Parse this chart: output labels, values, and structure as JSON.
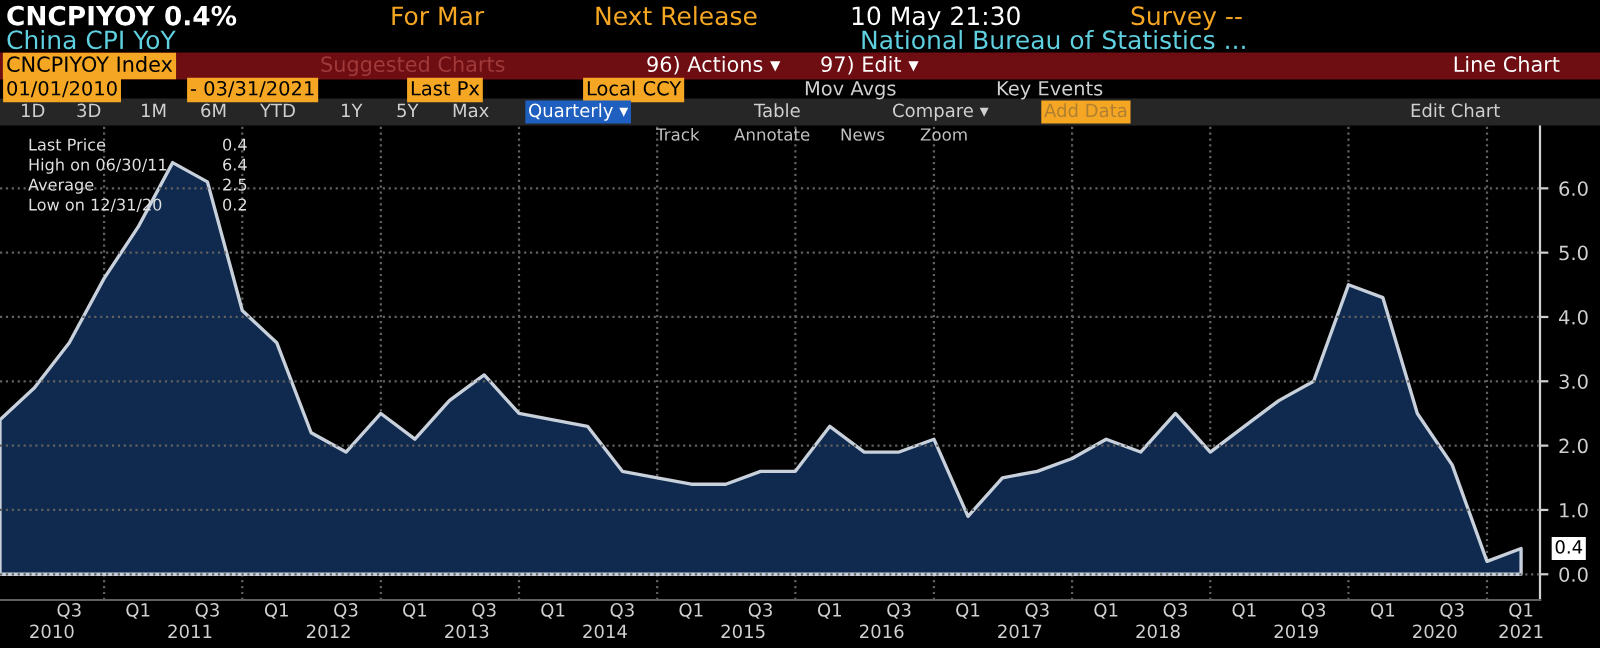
{
  "chart_data": {
    "type": "area",
    "title": "CNCPIYOY 0.4%",
    "subtitle": "China CPI YoY",
    "x": [
      "2010-03-31",
      "2010-06-30",
      "2010-09-30",
      "2010-12-31",
      "2011-03-31",
      "2011-06-30",
      "2011-09-30",
      "2011-12-31",
      "2012-03-31",
      "2012-06-30",
      "2012-09-30",
      "2012-12-31",
      "2013-03-31",
      "2013-06-30",
      "2013-09-30",
      "2013-12-31",
      "2014-03-31",
      "2014-06-30",
      "2014-09-30",
      "2014-12-31",
      "2015-03-31",
      "2015-06-30",
      "2015-09-30",
      "2015-12-31",
      "2016-03-31",
      "2016-06-30",
      "2016-09-30",
      "2016-12-31",
      "2017-03-31",
      "2017-06-30",
      "2017-09-30",
      "2017-12-31",
      "2018-03-31",
      "2018-06-30",
      "2018-09-30",
      "2018-12-31",
      "2019-03-31",
      "2019-06-30",
      "2019-09-30",
      "2019-12-31",
      "2020-03-31",
      "2020-06-30",
      "2020-09-30",
      "2020-12-31",
      "2021-03-31"
    ],
    "series": [
      {
        "color": "#0f2a4e",
        "values": [
          2.4,
          2.9,
          3.6,
          4.6,
          5.4,
          6.4,
          6.1,
          4.1,
          3.6,
          2.2,
          1.9,
          2.5,
          2.1,
          2.7,
          3.1,
          2.5,
          2.4,
          2.3,
          1.6,
          1.5,
          1.4,
          1.4,
          1.6,
          1.6,
          2.3,
          1.9,
          1.9,
          2.1,
          0.9,
          1.5,
          1.6,
          1.8,
          2.1,
          1.9,
          2.5,
          1.9,
          2.3,
          2.7,
          3.0,
          4.5,
          4.3,
          2.5,
          1.7,
          0.2,
          0.4
        ]
      }
    ],
    "xlim": [
      "2010-03-31",
      "2021-05-20"
    ],
    "xticks": [
      {
        "value": "2010-09-30",
        "label": "Q3"
      },
      {
        "value": "2011-03-31",
        "label": "Q1"
      },
      {
        "value": "2011-09-30",
        "label": "Q3"
      },
      {
        "value": "2012-03-31",
        "label": "Q1"
      },
      {
        "value": "2012-09-30",
        "label": "Q3"
      },
      {
        "value": "2013-03-31",
        "label": "Q1"
      },
      {
        "value": "2013-09-30",
        "label": "Q3"
      },
      {
        "value": "2014-03-31",
        "label": "Q1"
      },
      {
        "value": "2014-09-30",
        "label": "Q3"
      },
      {
        "value": "2015-03-31",
        "label": "Q1"
      },
      {
        "value": "2015-09-30",
        "label": "Q3"
      },
      {
        "value": "2016-03-31",
        "label": "Q1"
      },
      {
        "value": "2016-09-30",
        "label": "Q3"
      },
      {
        "value": "2017-03-31",
        "label": "Q1"
      },
      {
        "value": "2017-09-30",
        "label": "Q3"
      },
      {
        "value": "2018-03-31",
        "label": "Q1"
      },
      {
        "value": "2018-09-30",
        "label": "Q3"
      },
      {
        "value": "2019-03-31",
        "label": "Q1"
      },
      {
        "value": "2019-09-30",
        "label": "Q3"
      },
      {
        "value": "2020-03-31",
        "label": "Q1"
      },
      {
        "value": "2020-09-30",
        "label": "Q3"
      },
      {
        "value": "2021-03-31",
        "label": "Q1"
      }
    ],
    "x2lim": [
      "2010-03-31",
      "2021-05-20"
    ],
    "x2ticks": [
      {
        "value": "2010-08-15",
        "label": "2010"
      },
      {
        "value": "2011-08-15",
        "label": "2011"
      },
      {
        "value": "2012-08-15",
        "label": "2012"
      },
      {
        "value": "2013-08-15",
        "label": "2013"
      },
      {
        "value": "2014-08-15",
        "label": "2014"
      },
      {
        "value": "2015-08-15",
        "label": "2015"
      },
      {
        "value": "2016-08-15",
        "label": "2016"
      },
      {
        "value": "2017-08-15",
        "label": "2017"
      },
      {
        "value": "2018-08-15",
        "label": "2018"
      },
      {
        "value": "2019-08-15",
        "label": "2019"
      },
      {
        "value": "2020-08-15",
        "label": "2020"
      },
      {
        "value": "2021-03-31",
        "label": "2021"
      }
    ],
    "ylim": [
      -0.4,
      7.0
    ],
    "yticks": [
      {
        "value": 0,
        "label": "0.0"
      },
      {
        "value": 1,
        "label": "1.0"
      },
      {
        "value": 2,
        "label": "2.0"
      },
      {
        "value": 3,
        "label": "3.0"
      },
      {
        "value": 4,
        "label": "4.0"
      },
      {
        "value": 5,
        "label": "5.0"
      },
      {
        "value": 6,
        "label": "6.0"
      }
    ],
    "grid": true,
    "annotations": [
      "For Mar",
      "Next Release",
      "10 May 21:30",
      "Survey --",
      "National Bureau of Statistics ...",
      "CNCPIYOY Index",
      "Suggested Charts",
      "96) Actions ▾",
      "97) Edit ▾",
      "Line Chart",
      "01/01/2010",
      "- 03/31/2021",
      "Last Px",
      "Local CCY",
      "Mov Avgs",
      "Key Events",
      "1D",
      "3D",
      "1M",
      "6M",
      "YTD",
      "1Y",
      "5Y",
      "Max",
      "Quarterly ▾",
      "Table",
      "Compare ▾",
      "Add Data",
      "Edit Chart",
      "Track",
      "Annotate",
      "News",
      "Zoom",
      "Last Price",
      "0.4",
      "High on 06/30/11",
      "6.4",
      "Average",
      "2.5",
      "Low on 12/31/20",
      "0.2",
      {
        "text": "0.4",
        "x": "2021-03-31",
        "y": 0.4
      }
    ]
  }
}
